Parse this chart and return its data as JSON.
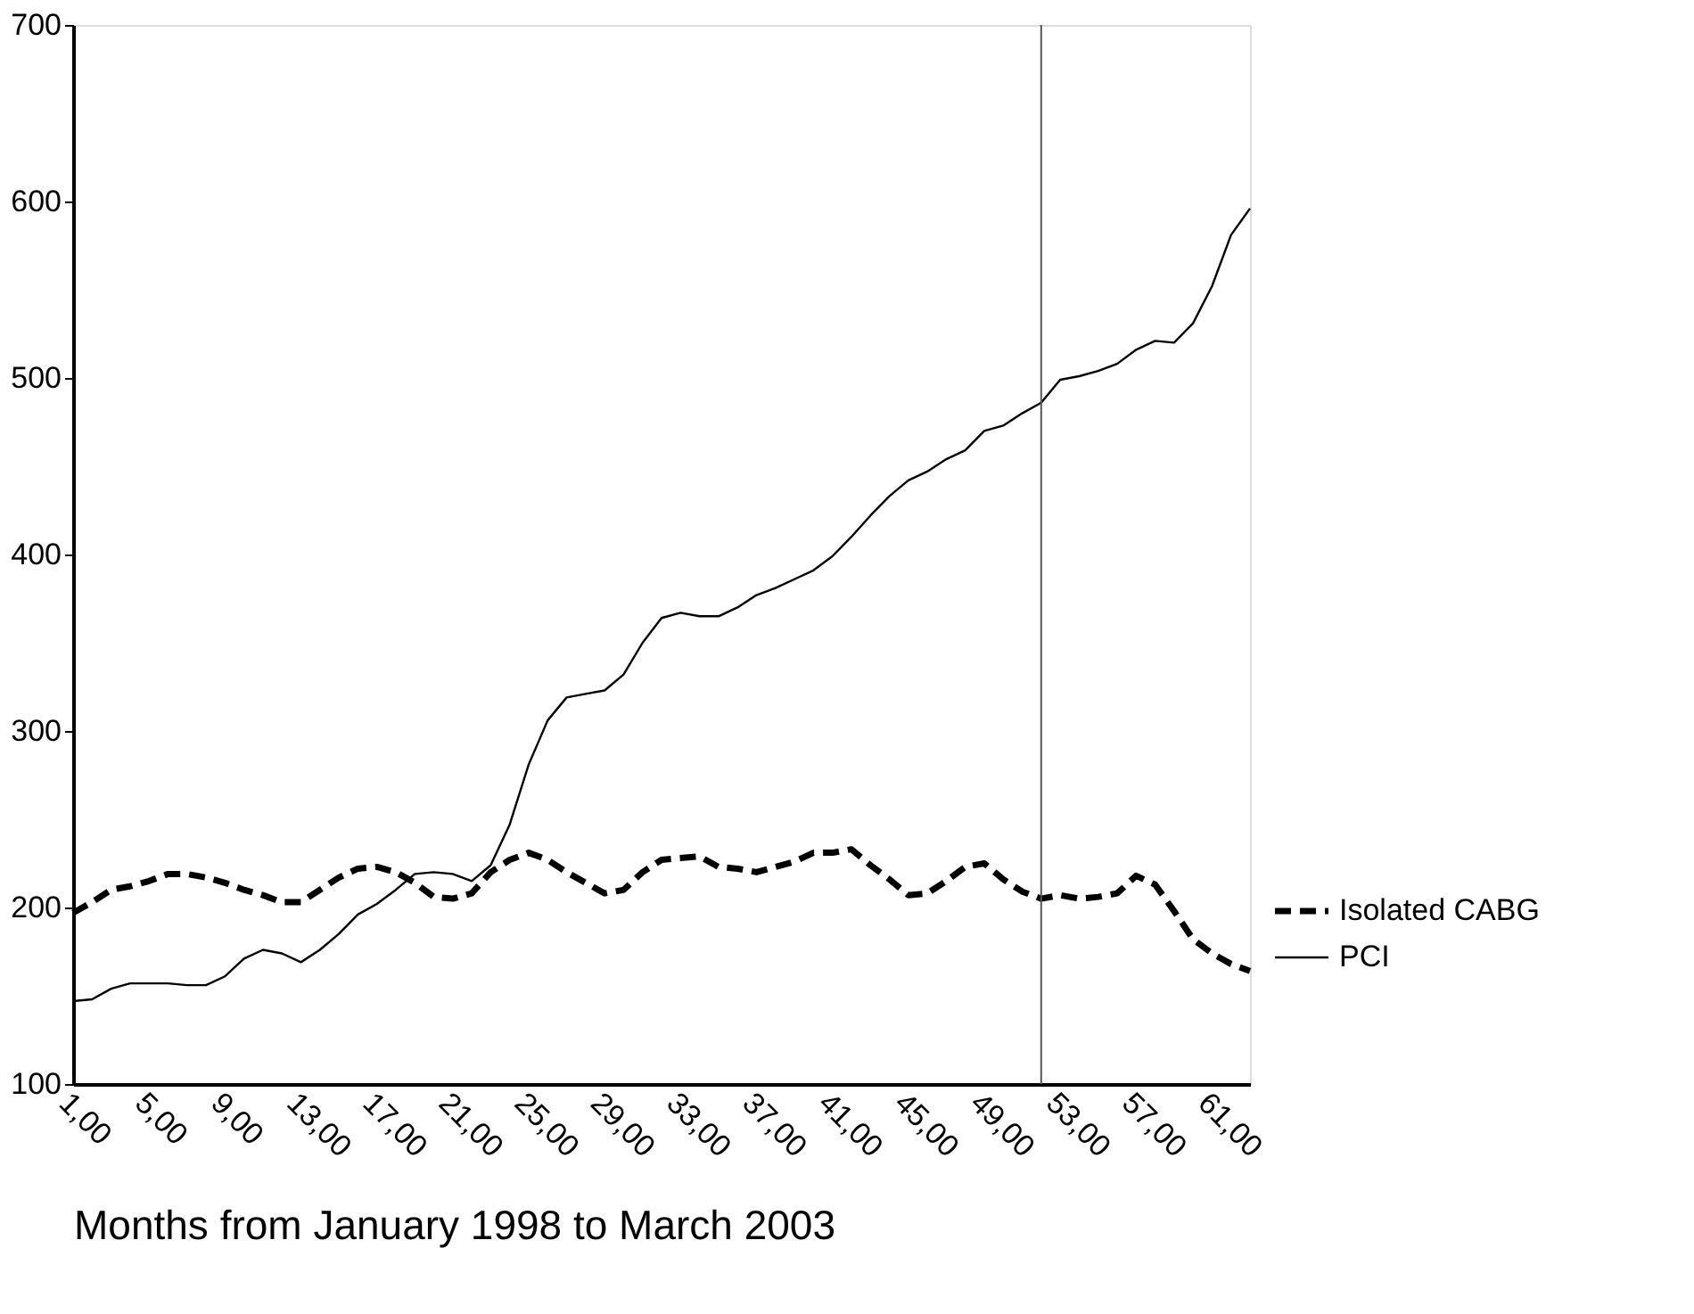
{
  "chart_data": {
    "type": "line",
    "xlabel": "Months from January 1998 to March 2003",
    "x": [
      1,
      2,
      3,
      4,
      5,
      6,
      7,
      8,
      9,
      10,
      11,
      12,
      13,
      14,
      15,
      16,
      17,
      18,
      19,
      20,
      21,
      22,
      23,
      24,
      25,
      26,
      27,
      28,
      29,
      30,
      31,
      32,
      33,
      34,
      35,
      36,
      37,
      38,
      39,
      40,
      41,
      42,
      43,
      44,
      45,
      46,
      47,
      48,
      49,
      50,
      51,
      52,
      53,
      54,
      55,
      56,
      57,
      58,
      59,
      60,
      61,
      62,
      63
    ],
    "series": [
      {
        "name": "Isolated CABG",
        "color": "#000000",
        "line_style": "dashed",
        "values": [
          197,
          203,
          210,
          212,
          215,
          219,
          219,
          217,
          214,
          210,
          207,
          203,
          203,
          210,
          217,
          222,
          223,
          220,
          214,
          206,
          205,
          208,
          220,
          227,
          231,
          227,
          220,
          214,
          208,
          210,
          220,
          227,
          228,
          229,
          223,
          222,
          220,
          223,
          226,
          231,
          231,
          233,
          224,
          216,
          207,
          208,
          215,
          223,
          225,
          216,
          209,
          205,
          207,
          205,
          206,
          208,
          218,
          213,
          198,
          182,
          174,
          168,
          164
        ]
      },
      {
        "name": "PCI",
        "color": "#000000",
        "line_style": "solid",
        "values": [
          147,
          148,
          154,
          157,
          157,
          157,
          156,
          156,
          161,
          171,
          176,
          174,
          169,
          176,
          185,
          196,
          202,
          210,
          219,
          220,
          219,
          215,
          224,
          247,
          281,
          306,
          319,
          321,
          323,
          332,
          350,
          364,
          367,
          365,
          365,
          370,
          377,
          381,
          386,
          391,
          399,
          410,
          422,
          433,
          442,
          447,
          454,
          459,
          470,
          473,
          480,
          486,
          499,
          501,
          504,
          508,
          516,
          521,
          520,
          531,
          552,
          581,
          596
        ]
      }
    ],
    "xlim": [
      1,
      63
    ],
    "xticks": [
      {
        "value": 1,
        "label": "1,00"
      },
      {
        "value": 5,
        "label": "5,00"
      },
      {
        "value": 9,
        "label": "9,00"
      },
      {
        "value": 13,
        "label": "13,00"
      },
      {
        "value": 17,
        "label": "17,00"
      },
      {
        "value": 21,
        "label": "21,00"
      },
      {
        "value": 25,
        "label": "25,00"
      },
      {
        "value": 29,
        "label": "29,00"
      },
      {
        "value": 33,
        "label": "33,00"
      },
      {
        "value": 37,
        "label": "37,00"
      },
      {
        "value": 41,
        "label": "41,00"
      },
      {
        "value": 45,
        "label": "45,00"
      },
      {
        "value": 49,
        "label": "49,00"
      },
      {
        "value": 53,
        "label": "53,00"
      },
      {
        "value": 57,
        "label": "57,00"
      },
      {
        "value": 61,
        "label": "61,00"
      }
    ],
    "ylim": [
      100,
      700
    ],
    "yticks": [
      100,
      200,
      300,
      400,
      500,
      600,
      700
    ],
    "ref_lines": [
      {
        "axis": "x",
        "value": 52,
        "color": "#555555"
      }
    ],
    "grid": false,
    "legend": "right",
    "marker": "none"
  }
}
